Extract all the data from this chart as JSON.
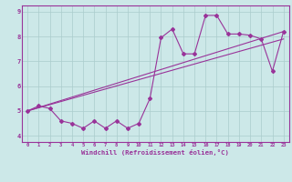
{
  "xlabel": "Windchill (Refroidissement éolien,°C)",
  "background_color": "#cce8e8",
  "line_color": "#993399",
  "grid_color": "#aacccc",
  "xlim": [
    -0.5,
    23.5
  ],
  "ylim": [
    3.75,
    9.25
  ],
  "xticks": [
    0,
    1,
    2,
    3,
    4,
    5,
    6,
    7,
    8,
    9,
    10,
    11,
    12,
    13,
    14,
    15,
    16,
    17,
    18,
    19,
    20,
    21,
    22,
    23
  ],
  "yticks": [
    4,
    5,
    6,
    7,
    8,
    9
  ],
  "series1_x": [
    0,
    1,
    2,
    3,
    4,
    5,
    6,
    7,
    8,
    9,
    10,
    11,
    12,
    13,
    14,
    15,
    16,
    17,
    18,
    19,
    20,
    21,
    22,
    23
  ],
  "series1_y": [
    5.0,
    5.2,
    5.1,
    4.6,
    4.5,
    4.3,
    4.6,
    4.3,
    4.6,
    4.3,
    4.5,
    5.5,
    7.95,
    8.3,
    7.3,
    7.3,
    8.85,
    8.85,
    8.1,
    8.1,
    8.05,
    7.9,
    6.6,
    8.2
  ],
  "trend1_x": [
    0,
    23
  ],
  "trend1_y": [
    5.0,
    7.9
  ],
  "trend2_x": [
    0,
    23
  ],
  "trend2_y": [
    5.0,
    8.2
  ]
}
